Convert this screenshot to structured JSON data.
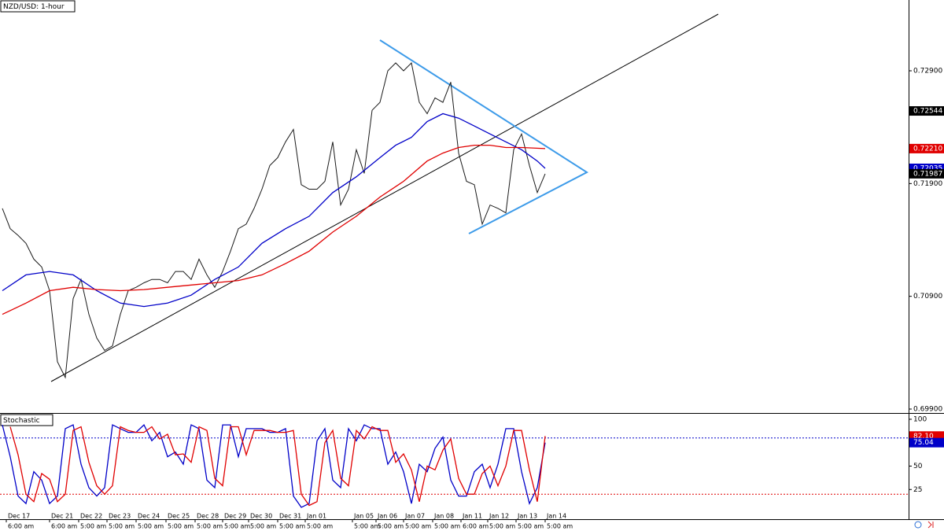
{
  "chart_data": [
    {
      "type": "line",
      "title": "NZD/USD: 1-hour",
      "xlim": [
        -0.3,
        115.2
      ],
      "ylim": [
        0.69865,
        0.73528
      ],
      "yticks": [
        {
          "value": 0.699,
          "label": "0.69900"
        },
        {
          "value": 0.709,
          "label": "0.70900"
        },
        {
          "value": 0.719,
          "label": "0.71900"
        },
        {
          "value": 0.729,
          "label": "0.72900"
        }
      ],
      "series": [
        {
          "color": "#1a1a1a",
          "x": [
            0,
            1,
            2,
            3,
            4,
            5,
            6,
            7,
            8,
            9,
            10,
            11,
            12,
            13,
            14,
            15,
            16,
            17,
            18,
            19,
            20,
            21,
            22,
            23,
            24,
            25,
            26,
            27,
            28,
            29,
            30,
            31,
            32,
            33,
            34,
            35,
            36,
            37,
            38,
            39,
            40,
            41,
            42,
            43,
            44,
            45,
            46,
            47,
            48,
            49,
            50,
            51,
            52,
            53,
            54,
            55,
            56,
            57,
            58,
            59,
            60,
            61,
            62,
            63,
            64,
            65,
            66,
            67,
            68,
            69
          ],
          "values": [
            0.7168,
            0.715,
            0.7144,
            0.7137,
            0.7123,
            0.7116,
            0.7095,
            0.7032,
            0.7018,
            0.7088,
            0.7105,
            0.7074,
            0.7053,
            0.7042,
            0.7046,
            0.7074,
            0.7095,
            0.7098,
            0.7102,
            0.7105,
            0.7105,
            0.7102,
            0.7112,
            0.7112,
            0.7105,
            0.7123,
            0.7109,
            0.7098,
            0.7112,
            0.713,
            0.715,
            0.7154,
            0.7168,
            0.7185,
            0.7206,
            0.7213,
            0.7227,
            0.7238,
            0.7189,
            0.7185,
            0.7185,
            0.7192,
            0.7227,
            0.7171,
            0.7185,
            0.722,
            0.7199,
            0.7255,
            0.7262,
            0.729,
            0.7297,
            0.729,
            0.7297,
            0.7262,
            0.7252,
            0.7266,
            0.7262,
            0.728,
            0.7217,
            0.7192,
            0.7189,
            0.7154,
            0.7171,
            0.7168,
            0.7164,
            0.722,
            0.7234,
            0.7206,
            0.7182,
            0.71987
          ]
        },
        {
          "color": "#0000c8",
          "x": [
            0,
            3,
            6,
            9,
            12,
            15,
            18,
            21,
            24,
            27,
            30,
            33,
            36,
            39,
            42,
            45,
            48,
            50,
            52,
            54,
            56,
            58,
            60,
            62,
            64,
            66,
            68,
            69
          ],
          "values": [
            0.7095,
            0.7109,
            0.7112,
            0.7109,
            0.7095,
            0.7084,
            0.7081,
            0.7084,
            0.7091,
            0.7105,
            0.7116,
            0.7137,
            0.715,
            0.7161,
            0.7182,
            0.7196,
            0.7213,
            0.7224,
            0.7231,
            0.7245,
            0.7252,
            0.7248,
            0.7241,
            0.7234,
            0.7227,
            0.722,
            0.721,
            0.72035
          ]
        },
        {
          "color": "#e00000",
          "x": [
            0,
            3,
            6,
            9,
            12,
            15,
            18,
            21,
            24,
            27,
            30,
            33,
            36,
            39,
            42,
            45,
            48,
            51,
            54,
            56,
            58,
            60,
            62,
            64,
            66,
            69
          ],
          "values": [
            0.7074,
            0.7084,
            0.7095,
            0.7098,
            0.7096,
            0.7095,
            0.7096,
            0.7098,
            0.71,
            0.7102,
            0.7104,
            0.7109,
            0.7119,
            0.713,
            0.7147,
            0.7161,
            0.7178,
            0.7192,
            0.721,
            0.7217,
            0.7222,
            0.7224,
            0.7224,
            0.7222,
            0.7222,
            0.7221
          ]
        }
      ],
      "price_labels": [
        {
          "value": 0.72544,
          "label": "0.72544",
          "color": "#000000"
        },
        {
          "value": 0.7221,
          "label": "0.72210",
          "color": "#e00000"
        },
        {
          "value": 0.72035,
          "label": "0.72035",
          "color": "#0000c8"
        },
        {
          "value": 0.71987,
          "label": "0.71987",
          "color": "#000000"
        }
      ],
      "x_ticks": [
        {
          "value": 0.5,
          "label": "Dec 17",
          "time": "6:00 am"
        },
        {
          "value": 6,
          "label": "Dec 21",
          "time": "6:00 am"
        },
        {
          "value": 9.7,
          "label": "Dec 22",
          "time": "5:00 am"
        },
        {
          "value": 13.3,
          "label": "Dec 23",
          "time": "5:00 am"
        },
        {
          "value": 17,
          "label": "Dec 24",
          "time": "5:00 am"
        },
        {
          "value": 20.8,
          "label": "Dec 25",
          "time": "5:00 am"
        },
        {
          "value": 24.5,
          "label": "Dec 28",
          "time": "5:00 am"
        },
        {
          "value": 28,
          "label": "Dec 29",
          "time": "5:00 am"
        },
        {
          "value": 31.3,
          "label": "Dec 30",
          "time": "5:00 am"
        },
        {
          "value": 35,
          "label": "Dec 31",
          "time": "5:00 am"
        },
        {
          "value": 38.5,
          "label": "Jan 01",
          "time": "5:00 am"
        },
        {
          "value": 44.5,
          "label": "Jan 05",
          "time": "5:00 am"
        },
        {
          "value": 47.5,
          "label": "Jan 06",
          "time": "5:00 am"
        },
        {
          "value": 51,
          "label": "Jan 07",
          "time": "5:00 am"
        },
        {
          "value": 54.7,
          "label": "Jan 08",
          "time": "5:00 am"
        },
        {
          "value": 58.3,
          "label": "Jan 11",
          "time": "6:00 am"
        },
        {
          "value": 61.7,
          "label": "Jan 12",
          "time": "5:00 am"
        },
        {
          "value": 65.3,
          "label": "Jan 13",
          "time": "5:00 am"
        },
        {
          "value": 69,
          "label": "Jan 14",
          "time": "5:00 am"
        }
      ]
    },
    {
      "type": "line",
      "title": "Stochastic",
      "xlim": [
        -0.3,
        115.2
      ],
      "ylim": [
        -6.7,
        105
      ],
      "yticks": [
        25,
        50,
        75,
        100
      ],
      "levels": [
        {
          "value": 80,
          "color": "#0000c8"
        },
        {
          "value": 20,
          "color": "#e00000"
        }
      ],
      "series": [
        {
          "color": "#0000c8",
          "x": [
            0,
            1,
            2,
            3,
            4,
            5,
            6,
            7,
            8,
            9,
            10,
            11,
            12,
            13,
            14,
            15,
            16,
            17,
            18,
            19,
            20,
            21,
            22,
            23,
            24,
            25,
            26,
            27,
            28,
            29,
            30,
            31,
            32,
            33,
            34,
            35,
            36,
            37,
            38,
            39,
            40,
            41,
            42,
            43,
            44,
            45,
            46,
            47,
            48,
            49,
            50,
            51,
            52,
            53,
            54,
            55,
            56,
            57,
            58,
            59,
            60,
            61,
            62,
            63,
            64,
            65,
            66,
            67,
            68,
            69
          ],
          "values": [
            94,
            60,
            18,
            10,
            44,
            35,
            10,
            18,
            90,
            94,
            52,
            27,
            18,
            27,
            94,
            90,
            86,
            86,
            94,
            77,
            86,
            60,
            65,
            52,
            94,
            90,
            35,
            27,
            94,
            94,
            60,
            90,
            90,
            90,
            86,
            86,
            90,
            18,
            6,
            10,
            77,
            90,
            35,
            27,
            90,
            77,
            94,
            90,
            90,
            52,
            65,
            44,
            10,
            52,
            44,
            69,
            81,
            35,
            18,
            18,
            44,
            52,
            27,
            52,
            90,
            90,
            44,
            10,
            27,
            75.04
          ]
        },
        {
          "color": "#e00000",
          "x": [
            1,
            2,
            3,
            4,
            5,
            6,
            7,
            8,
            9,
            10,
            11,
            12,
            13,
            14,
            15,
            16,
            17,
            18,
            19,
            20,
            21,
            22,
            23,
            24,
            25,
            26,
            27,
            28,
            29,
            30,
            31,
            32,
            33,
            34,
            35,
            36,
            37,
            38,
            39,
            40,
            41,
            42,
            43,
            44,
            45,
            46,
            47,
            48,
            49,
            50,
            51,
            52,
            53,
            54,
            55,
            56,
            57,
            58,
            59,
            60,
            61,
            62,
            63,
            64,
            65,
            66,
            67,
            68,
            69
          ],
          "values": [
            92,
            62,
            20,
            12,
            42,
            36,
            12,
            20,
            88,
            92,
            54,
            29,
            20,
            29,
            92,
            88,
            86,
            86,
            92,
            79,
            84,
            62,
            63,
            54,
            92,
            88,
            37,
            29,
            92,
            92,
            62,
            88,
            88,
            88,
            86,
            86,
            88,
            20,
            8,
            12,
            75,
            88,
            37,
            29,
            88,
            79,
            92,
            88,
            88,
            54,
            63,
            46,
            12,
            50,
            46,
            67,
            79,
            37,
            20,
            20,
            42,
            50,
            29,
            50,
            88,
            88,
            46,
            12,
            82.1
          ]
        }
      ],
      "price_labels": [
        {
          "value": 82.1,
          "label": "82.10",
          "color": "#e00000"
        },
        {
          "value": 75.04,
          "label": "75.04",
          "color": "#0000c8"
        }
      ]
    }
  ]
}
